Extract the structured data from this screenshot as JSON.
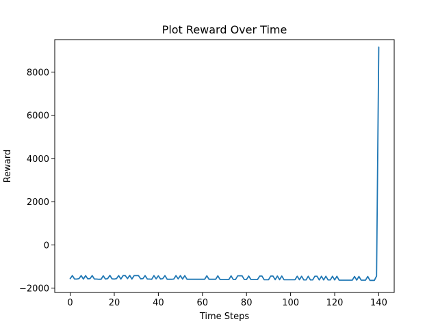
{
  "chart_data": {
    "type": "line",
    "title": "Plot Reward Over Time",
    "xlabel": "Time Steps",
    "ylabel": "Reward",
    "xlim": [
      -7,
      147
    ],
    "ylim": [
      -2200,
      9500
    ],
    "xticks": [
      0,
      20,
      40,
      60,
      80,
      100,
      120,
      140
    ],
    "yticks": [
      -2000,
      0,
      2000,
      4000,
      6000,
      8000
    ],
    "tick_labels_x": [
      "0",
      "20",
      "40",
      "60",
      "80",
      "100",
      "120",
      "140"
    ],
    "tick_labels_y": [
      "−2000",
      "0",
      "2000",
      "4000",
      "6000",
      "8000"
    ],
    "grid": false,
    "series": [
      {
        "color": "#1f77b4",
        "x": [
          0,
          1,
          2,
          3,
          4,
          5,
          6,
          7,
          8,
          9,
          10,
          11,
          12,
          13,
          14,
          15,
          16,
          17,
          18,
          19,
          20,
          21,
          22,
          23,
          24,
          25,
          26,
          27,
          28,
          29,
          30,
          31,
          32,
          33,
          34,
          35,
          36,
          37,
          38,
          39,
          40,
          41,
          42,
          43,
          44,
          45,
          46,
          47,
          48,
          49,
          50,
          51,
          52,
          53,
          54,
          55,
          56,
          57,
          58,
          59,
          60,
          61,
          62,
          63,
          64,
          65,
          66,
          67,
          68,
          69,
          70,
          71,
          72,
          73,
          74,
          75,
          76,
          77,
          78,
          79,
          80,
          81,
          82,
          83,
          84,
          85,
          86,
          87,
          88,
          89,
          90,
          91,
          92,
          93,
          94,
          95,
          96,
          97,
          98,
          99,
          100,
          101,
          102,
          103,
          104,
          105,
          106,
          107,
          108,
          109,
          110,
          111,
          112,
          113,
          114,
          115,
          116,
          117,
          118,
          119,
          120,
          121,
          122,
          123,
          124,
          125,
          126,
          127,
          128,
          129,
          130,
          131,
          132,
          133,
          134,
          135,
          136,
          137,
          138,
          139,
          140
        ],
        "y": [
          -1560,
          -1420,
          -1580,
          -1580,
          -1560,
          -1420,
          -1580,
          -1420,
          -1570,
          -1560,
          -1420,
          -1580,
          -1580,
          -1590,
          -1590,
          -1430,
          -1580,
          -1560,
          -1410,
          -1570,
          -1580,
          -1560,
          -1420,
          -1580,
          -1420,
          -1420,
          -1560,
          -1410,
          -1580,
          -1420,
          -1420,
          -1420,
          -1570,
          -1560,
          -1420,
          -1580,
          -1580,
          -1590,
          -1420,
          -1570,
          -1430,
          -1580,
          -1560,
          -1420,
          -1590,
          -1590,
          -1590,
          -1580,
          -1420,
          -1570,
          -1420,
          -1580,
          -1420,
          -1590,
          -1590,
          -1590,
          -1590,
          -1590,
          -1590,
          -1590,
          -1590,
          -1590,
          -1430,
          -1590,
          -1590,
          -1590,
          -1590,
          -1430,
          -1600,
          -1600,
          -1600,
          -1600,
          -1600,
          -1430,
          -1600,
          -1600,
          -1430,
          -1430,
          -1430,
          -1600,
          -1600,
          -1440,
          -1600,
          -1600,
          -1600,
          -1600,
          -1440,
          -1440,
          -1610,
          -1610,
          -1610,
          -1440,
          -1440,
          -1610,
          -1440,
          -1610,
          -1440,
          -1610,
          -1610,
          -1610,
          -1610,
          -1610,
          -1610,
          -1450,
          -1610,
          -1450,
          -1620,
          -1620,
          -1450,
          -1620,
          -1620,
          -1450,
          -1450,
          -1620,
          -1450,
          -1620,
          -1450,
          -1620,
          -1620,
          -1450,
          -1620,
          -1450,
          -1630,
          -1630,
          -1630,
          -1630,
          -1630,
          -1630,
          -1630,
          -1460,
          -1630,
          -1460,
          -1630,
          -1630,
          -1630,
          -1460,
          -1640,
          -1640,
          -1640,
          -1440,
          9150
        ]
      }
    ]
  }
}
